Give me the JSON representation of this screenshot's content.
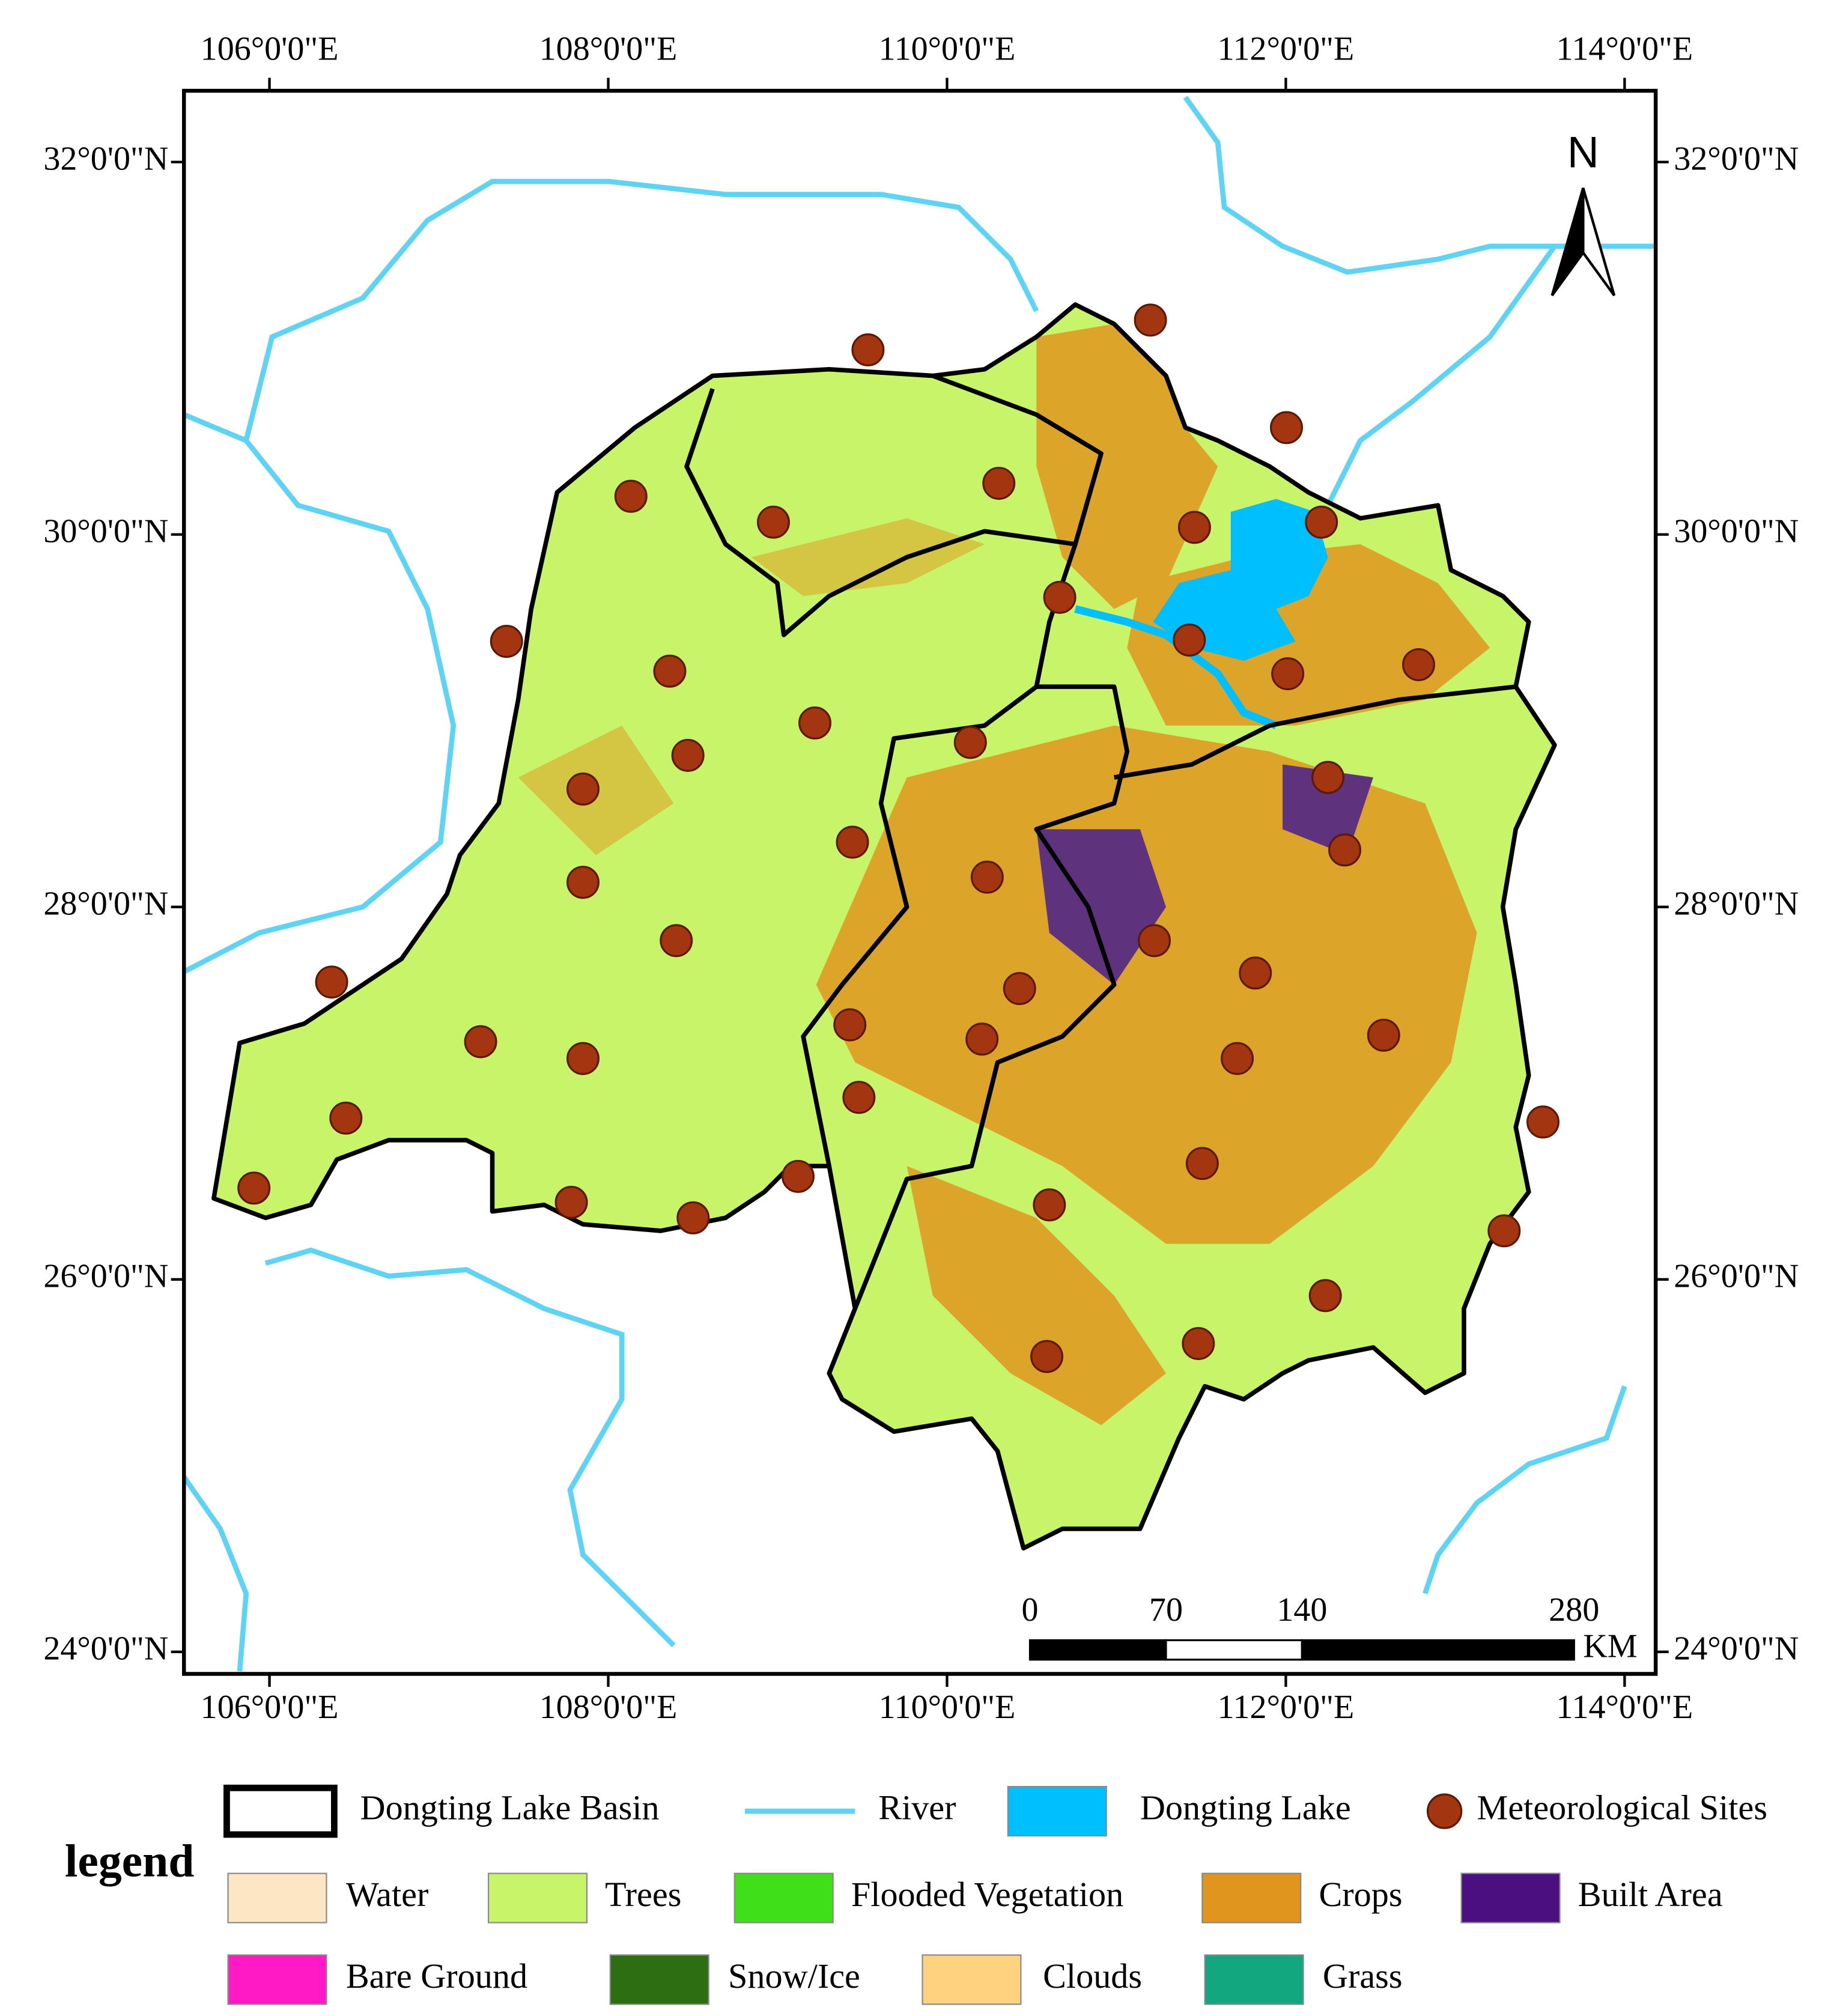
{
  "map": {
    "lon_ticks": [
      {
        "value": 106,
        "label": "106°0'0\"E"
      },
      {
        "value": 108,
        "label": "108°0'0\"E"
      },
      {
        "value": 110,
        "label": "110°0'0\"E"
      },
      {
        "value": 112,
        "label": "112°0'0\"E"
      },
      {
        "value": 114,
        "label": "114°0'0\"E"
      }
    ],
    "lat_ticks": [
      {
        "value": 32,
        "label": "32°0'0\"N"
      },
      {
        "value": 30,
        "label": "30°0'0\"N"
      },
      {
        "value": 28,
        "label": "28°0'0\"N"
      },
      {
        "value": 26,
        "label": "26°0'0\"N"
      },
      {
        "value": 24,
        "label": "24°0'0\"N"
      }
    ],
    "north": "N",
    "scale_bar": {
      "ticks": [
        0,
        70,
        140,
        280
      ],
      "unit": "KM"
    },
    "legend": {
      "title": "legend",
      "items": [
        {
          "label": "Dongting Lake Basin",
          "symbol": "outline",
          "color": "#000000"
        },
        {
          "label": "River",
          "symbol": "line",
          "color": "#5fd3f3"
        },
        {
          "label": "Dongting Lake",
          "symbol": "fill",
          "color": "#00bfff"
        },
        {
          "label": "Meteorological Sites",
          "symbol": "circle",
          "color": "#a33510"
        },
        {
          "label": "Water",
          "symbol": "fill",
          "color": "#fde6c3"
        },
        {
          "label": "Trees",
          "symbol": "fill",
          "color": "#c8f46a"
        },
        {
          "label": "Flooded Vegetation",
          "symbol": "fill",
          "color": "#3fe01a"
        },
        {
          "label": "Crops",
          "symbol": "fill",
          "color": "#e0961e"
        },
        {
          "label": "Built Area",
          "symbol": "fill",
          "color": "#4b0f80"
        },
        {
          "label": "Bare Ground",
          "symbol": "fill",
          "color": "#ff1ac6"
        },
        {
          "label": "Snow/Ice",
          "symbol": "fill",
          "color": "#2d6e12"
        },
        {
          "label": "Clouds",
          "symbol": "fill",
          "color": "#ffd27f"
        },
        {
          "label": "Grass",
          "symbol": "fill",
          "color": "#12a77e"
        }
      ]
    }
  }
}
